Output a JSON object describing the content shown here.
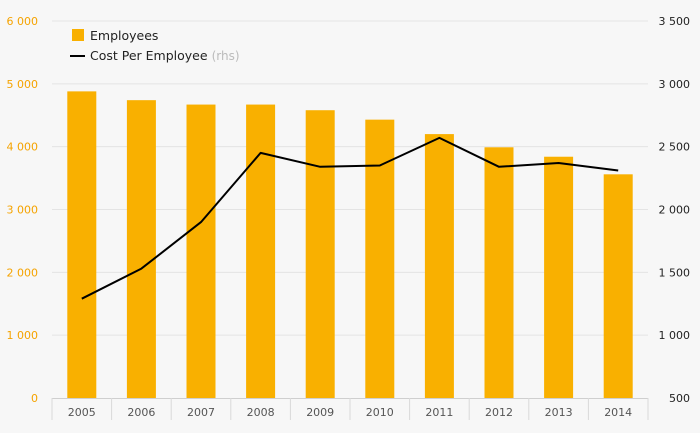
{
  "chart_data": {
    "type": "bar",
    "categories": [
      "2005",
      "2006",
      "2007",
      "2008",
      "2009",
      "2010",
      "2011",
      "2012",
      "2013",
      "2014"
    ],
    "series": [
      {
        "name": "Employees",
        "type": "bar",
        "axis": "left",
        "color": "#f9b000",
        "values": [
          4880,
          4740,
          4670,
          4670,
          4580,
          4430,
          4200,
          3990,
          3840,
          3560
        ]
      },
      {
        "name": "Cost Per Employee",
        "name_suffix": "(rhs)",
        "type": "line",
        "axis": "right",
        "color": "#000000",
        "values": [
          1290,
          1530,
          1900,
          2450,
          2340,
          2350,
          2570,
          2340,
          2370,
          2310
        ]
      }
    ],
    "y_left": {
      "lim": [
        0,
        6000
      ],
      "ticks": [
        0,
        1000,
        2000,
        3000,
        4000,
        5000,
        6000
      ],
      "tick_labels": [
        "0",
        "1 000",
        "2 000",
        "3 000",
        "4 000",
        "5 000",
        "6 000"
      ]
    },
    "y_right": {
      "lim": [
        500,
        3500
      ],
      "ticks": [
        500,
        1000,
        1500,
        2000,
        2500,
        3000,
        3500
      ],
      "tick_labels": [
        "500",
        "1 000",
        "1 500",
        "2 000",
        "2 500",
        "3 000",
        "3 500"
      ]
    },
    "grid": true,
    "legend_position": "top-left",
    "title": "",
    "xlabel": "",
    "ylabel": ""
  }
}
